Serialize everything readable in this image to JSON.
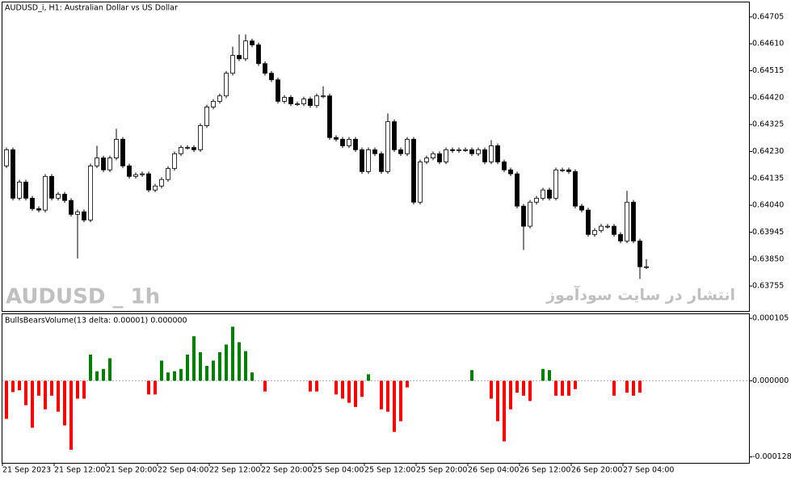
{
  "chart_data": [
    {
      "type": "candlestick",
      "title": "AUDUSD_i, H1:  Australian Dollar vs US Dollar",
      "watermark": "AUDUSD _ 1h",
      "annotation": "انتشار در سایت سودآموز",
      "up_color": "#ffffff",
      "down_color": "#000000",
      "outline_color": "#000000",
      "open": [
        0.64179,
        0.64236,
        0.64065,
        0.64122,
        0.64065,
        0.64028,
        0.64023,
        0.64142,
        0.64065,
        0.64079,
        0.64057,
        0.64008,
        0.64017,
        0.63988,
        0.64179,
        0.64207,
        0.64165,
        0.64207,
        0.64273,
        0.64179,
        0.64142,
        0.64148,
        0.64151,
        0.64094,
        0.64108,
        0.64131,
        0.6417,
        0.64222,
        0.64244,
        0.64244,
        0.64236,
        0.64321,
        0.64387,
        0.64407,
        0.64426,
        0.64506,
        0.64569,
        0.64557,
        0.6462,
        0.64606,
        0.6454,
        0.64506,
        0.64483,
        0.64407,
        0.64421,
        0.64398,
        0.64398,
        0.64415,
        0.64392,
        0.64426,
        0.64426,
        0.64279,
        0.64273,
        0.6425,
        0.64273,
        0.64236,
        0.64159,
        0.64236,
        0.64222,
        0.64159,
        0.64335,
        0.64236,
        0.64222,
        0.64273,
        0.64051,
        0.64193,
        0.64207,
        0.64222,
        0.64193,
        0.64236,
        0.64233,
        0.64236,
        0.64236,
        0.64222,
        0.64236,
        0.64193,
        0.6425,
        0.64193,
        0.64165,
        0.64151,
        0.64037,
        0.63966,
        0.64051,
        0.64065,
        0.64094,
        0.64065,
        0.64165,
        0.64165,
        0.64159,
        0.64037,
        0.64023,
        0.63937,
        0.63951,
        0.63966,
        0.63966,
        0.63937,
        0.63914,
        0.64051,
        0.63914,
        0.63823
      ],
      "high": [
        0.64244,
        0.64244,
        0.6413,
        0.6413,
        0.64073,
        0.64036,
        0.6415,
        0.6415,
        0.64087,
        0.64087,
        0.64065,
        0.64025,
        0.64025,
        0.64187,
        0.6425,
        0.64215,
        0.64215,
        0.6431,
        0.64281,
        0.64187,
        0.64156,
        0.64159,
        0.64159,
        0.64116,
        0.64139,
        0.64178,
        0.6423,
        0.64252,
        0.64252,
        0.64252,
        0.64329,
        0.64395,
        0.64415,
        0.64434,
        0.64514,
        0.646,
        0.64643,
        0.64643,
        0.64628,
        0.64614,
        0.64548,
        0.64514,
        0.64491,
        0.64429,
        0.64429,
        0.64406,
        0.64423,
        0.64423,
        0.64434,
        0.6446,
        0.64434,
        0.64287,
        0.64281,
        0.64281,
        0.64281,
        0.64244,
        0.64244,
        0.64244,
        0.6423,
        0.64364,
        0.64343,
        0.64244,
        0.64281,
        0.64281,
        0.64201,
        0.64215,
        0.6423,
        0.6423,
        0.64244,
        0.64244,
        0.64244,
        0.64244,
        0.64244,
        0.64244,
        0.64244,
        0.6427,
        0.64258,
        0.64201,
        0.64173,
        0.64159,
        0.64045,
        0.64059,
        0.64073,
        0.64102,
        0.64102,
        0.64173,
        0.64173,
        0.64173,
        0.64167,
        0.64045,
        0.64031,
        0.63959,
        0.63974,
        0.63974,
        0.63974,
        0.63945,
        0.64091,
        0.64059,
        0.63922,
        0.6385
      ],
      "low": [
        0.64171,
        0.64057,
        0.64057,
        0.64057,
        0.6402,
        0.64015,
        0.64015,
        0.64057,
        0.64057,
        0.64049,
        0.64,
        0.63852,
        0.6398,
        0.6398,
        0.64171,
        0.64157,
        0.64157,
        0.64199,
        0.64171,
        0.64134,
        0.64134,
        0.6414,
        0.64086,
        0.64086,
        0.641,
        0.64123,
        0.64162,
        0.64214,
        0.64236,
        0.64228,
        0.64228,
        0.64313,
        0.64379,
        0.64399,
        0.64418,
        0.64498,
        0.64549,
        0.64549,
        0.64598,
        0.64532,
        0.64498,
        0.64475,
        0.64399,
        0.64399,
        0.6439,
        0.6439,
        0.6439,
        0.64384,
        0.64384,
        0.64418,
        0.64271,
        0.64265,
        0.64242,
        0.64242,
        0.64228,
        0.64151,
        0.64151,
        0.64214,
        0.64151,
        0.64151,
        0.64228,
        0.64214,
        0.64214,
        0.64043,
        0.64043,
        0.64185,
        0.64199,
        0.64185,
        0.64185,
        0.64225,
        0.64225,
        0.64228,
        0.64214,
        0.64214,
        0.64185,
        0.64185,
        0.64185,
        0.64157,
        0.64143,
        0.64029,
        0.63882,
        0.63958,
        0.64043,
        0.64057,
        0.64057,
        0.64057,
        0.64157,
        0.64151,
        0.64029,
        0.64015,
        0.63929,
        0.63929,
        0.63943,
        0.63958,
        0.63929,
        0.63906,
        0.63906,
        0.63906,
        0.6378,
        0.63815
      ],
      "close": [
        0.64236,
        0.64065,
        0.64122,
        0.64065,
        0.64028,
        0.64023,
        0.64142,
        0.64065,
        0.64079,
        0.64057,
        0.64008,
        0.64017,
        0.63988,
        0.64179,
        0.64207,
        0.64165,
        0.64207,
        0.64273,
        0.64179,
        0.64142,
        0.64148,
        0.64151,
        0.64094,
        0.64108,
        0.64131,
        0.6417,
        0.64222,
        0.64244,
        0.64244,
        0.64236,
        0.64321,
        0.64387,
        0.64407,
        0.64426,
        0.64506,
        0.64569,
        0.64557,
        0.6462,
        0.64606,
        0.6454,
        0.64506,
        0.64483,
        0.64407,
        0.64421,
        0.64398,
        0.64398,
        0.64415,
        0.64392,
        0.64426,
        0.64426,
        0.64279,
        0.64273,
        0.6425,
        0.64273,
        0.64236,
        0.64159,
        0.64236,
        0.64222,
        0.64159,
        0.64335,
        0.64236,
        0.64222,
        0.64273,
        0.64051,
        0.64193,
        0.64207,
        0.64222,
        0.64193,
        0.64236,
        0.64233,
        0.64236,
        0.64236,
        0.64222,
        0.64236,
        0.64193,
        0.6425,
        0.64193,
        0.64165,
        0.64151,
        0.64037,
        0.63966,
        0.64051,
        0.64065,
        0.64094,
        0.64065,
        0.64165,
        0.64165,
        0.64159,
        0.64037,
        0.64023,
        0.63937,
        0.63951,
        0.63966,
        0.63966,
        0.63937,
        0.63914,
        0.64051,
        0.63914,
        0.63823,
        0.63823
      ],
      "ylim": [
        0.63664,
        0.64756
      ],
      "yticks": [
        {
          "value": 0.64705,
          "label": "0.64705"
        },
        {
          "value": 0.6461,
          "label": "0.64610"
        },
        {
          "value": 0.64515,
          "label": "0.64515"
        },
        {
          "value": 0.6442,
          "label": "0.64420"
        },
        {
          "value": 0.64325,
          "label": "0.64325"
        },
        {
          "value": 0.6423,
          "label": "0.64230"
        },
        {
          "value": 0.64135,
          "label": "0.64135"
        },
        {
          "value": 0.6404,
          "label": "0.64040"
        },
        {
          "value": 0.63945,
          "label": "0.63945"
        },
        {
          "value": 0.6385,
          "label": "0.63850"
        },
        {
          "value": 0.63755,
          "label": "0.63755"
        }
      ],
      "xticks": [
        {
          "value": 0,
          "label": "21 Sep 2023"
        },
        {
          "value": 8,
          "label": "21 Sep 12:00"
        },
        {
          "value": 16,
          "label": "21 Sep 20:00"
        },
        {
          "value": 24,
          "label": "22 Sep 04:00"
        },
        {
          "value": 32,
          "label": "22 Sep 12:00"
        },
        {
          "value": 40,
          "label": "22 Sep 20:00"
        },
        {
          "value": 48,
          "label": "25 Sep 04:00"
        },
        {
          "value": 56,
          "label": "25 Sep 12:00"
        },
        {
          "value": 64,
          "label": "25 Sep 20:00"
        },
        {
          "value": 72,
          "label": "26 Sep 04:00"
        },
        {
          "value": 80,
          "label": "26 Sep 12:00"
        },
        {
          "value": 88,
          "label": "26 Sep 20:00"
        },
        {
          "value": 96,
          "label": "27 Sep 04:00"
        }
      ]
    },
    {
      "type": "bar",
      "title": "BullsBearsVolume(13  delta: 0.00001)  0.000000",
      "up_color": "#008000",
      "down_color": "#ff0000",
      "values": [
        -6.4e-05,
        -1.9e-05,
        -1.6e-05,
        -4.1e-05,
        -7.9e-05,
        -2.5e-05,
        -4.8e-05,
        -2.5e-05,
        -5.2e-05,
        -7.5e-05,
        -0.000116,
        -3e-05,
        -3e-05,
        4.4e-05,
        1.6e-05,
        2e-05,
        3.8e-05,
        0,
        0,
        0,
        0,
        0,
        -2.3e-05,
        -2.3e-05,
        3.4e-05,
        1.4e-05,
        1.6e-05,
        2e-05,
        4.4e-05,
        7.5e-05,
        4.8e-05,
        2.5e-05,
        3.4e-05,
        4.8e-05,
        6.1e-05,
        9.1e-05,
        6.5e-05,
        5e-05,
        1.4e-05,
        0,
        -1.8e-05,
        0,
        0,
        0,
        0,
        0,
        0,
        -1.8e-05,
        -1.8e-05,
        0,
        0,
        -2.3e-05,
        -3e-05,
        -3.7e-05,
        -4.4e-05,
        -2.7e-05,
        1.1e-05,
        0,
        -4.8e-05,
        -5.2e-05,
        -8.6e-05,
        -6.8e-05,
        -1.1e-05,
        0,
        0,
        0,
        0,
        0,
        0,
        0,
        0,
        0,
        1.8e-05,
        0,
        0,
        -3e-05,
        -6.8e-05,
        -0.000102,
        -4.8e-05,
        -2e-05,
        -2.5e-05,
        -3.4e-05,
        0,
        2e-05,
        1.8e-05,
        -2.5e-05,
        -2.5e-05,
        -2.5e-05,
        -1.4e-05,
        0,
        0,
        0,
        0,
        0,
        -2.5e-05,
        0,
        -2e-05,
        -2.5e-05,
        -2e-05,
        0
      ],
      "ylim": [
        -0.000138,
        0.000112
      ],
      "yticks": [
        0.000105,
        {
          "value": 0,
          "label": "0.000000"
        },
        -0.000128
      ]
    }
  ]
}
